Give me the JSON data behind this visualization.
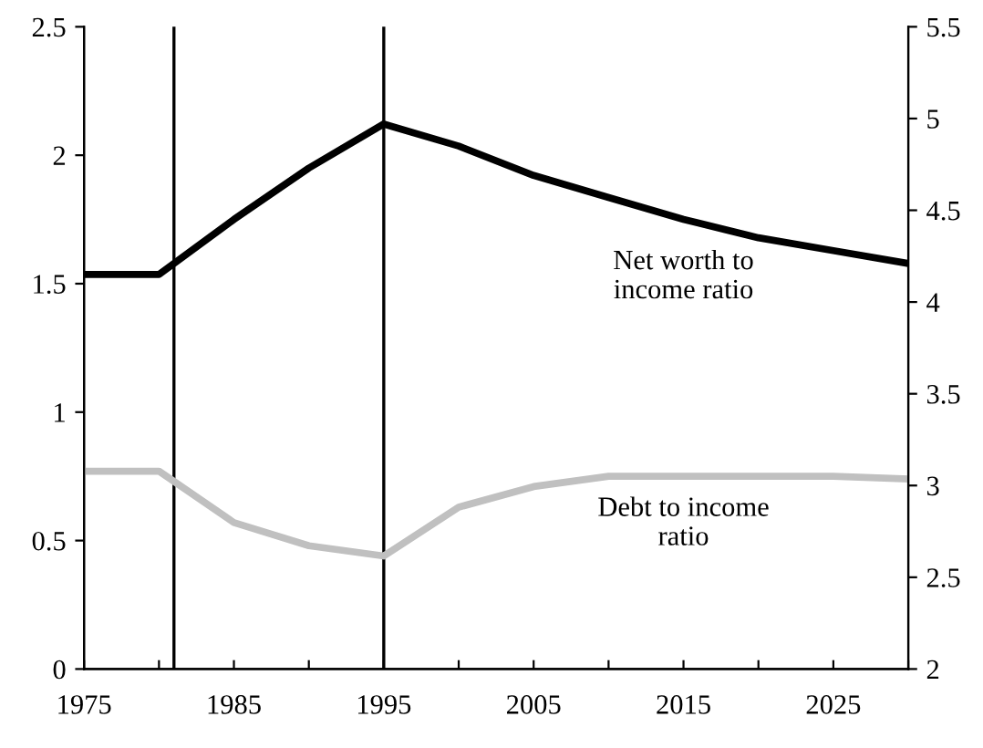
{
  "chart_data": {
    "type": "line",
    "x": [
      1975,
      1980,
      1985,
      1990,
      1995,
      2000,
      2005,
      2010,
      2015,
      2020,
      2025,
      2030
    ],
    "series": [
      {
        "name": "Net worth to\nincome ratio",
        "color": "#000000",
        "axis": "y2",
        "values": [
          4.15,
          4.15,
          4.45,
          4.73,
          4.97,
          4.85,
          4.69,
          4.57,
          4.45,
          4.35,
          4.28,
          4.21
        ]
      },
      {
        "name": "Debt to income\nratio",
        "color": "#c0c0c0",
        "values": [
          0.77,
          0.77,
          0.57,
          0.48,
          0.44,
          0.63,
          0.71,
          0.75,
          0.75,
          0.75,
          0.75,
          0.74
        ]
      }
    ],
    "xlim": [
      1975,
      2030
    ],
    "xticks": [
      1975,
      {
        "value": 1980,
        "label": null
      },
      1985,
      {
        "value": 1990,
        "label": null
      },
      1995,
      {
        "value": 2000,
        "label": null
      },
      2005,
      {
        "value": 2010,
        "label": null
      },
      2015,
      {
        "value": 2020,
        "label": null
      },
      2025,
      {
        "value": 2030,
        "label": null
      }
    ],
    "ylim": [
      0,
      2.5
    ],
    "yticks": [
      0,
      0.5,
      1,
      1.5,
      2,
      2.5
    ],
    "y2lim": [
      2,
      5.5
    ],
    "y2ticks": [
      2,
      2.5,
      3,
      3.5,
      4,
      4.5,
      5,
      5.5
    ],
    "ref_lines": [
      {
        "axis": "x",
        "value": 1981,
        "color": "#000000"
      },
      {
        "axis": "x",
        "value": 1995,
        "color": "#000000"
      }
    ],
    "legend": false,
    "grid": false,
    "marker": "none",
    "line_style": "solid"
  }
}
